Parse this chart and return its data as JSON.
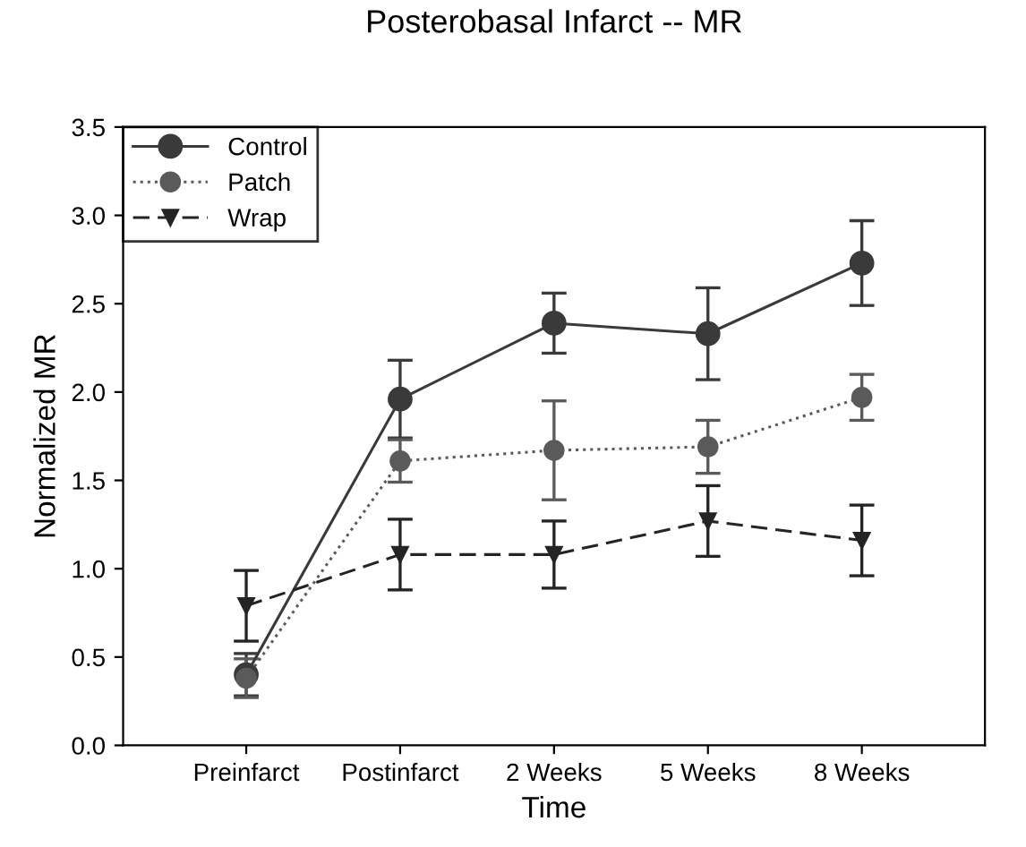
{
  "chart_data": {
    "type": "line",
    "title": "Posterobasal Infarct -- MR",
    "xlabel": "Time",
    "ylabel": "Normalized MR",
    "categories": [
      "Preinfarct",
      "Postinfarct",
      "2 Weeks",
      "5 Weeks",
      "8 Weeks"
    ],
    "ylim": [
      0,
      3.5
    ],
    "yticks": [
      {
        "value": 0,
        "label": "0.0"
      },
      0.5,
      {
        "value": 1,
        "label": "1.0"
      },
      1.5,
      {
        "value": 2,
        "label": "2.0"
      },
      2.5,
      {
        "value": 3,
        "label": "3.0"
      },
      3.5
    ],
    "grid": false,
    "legend": "top left",
    "series": [
      {
        "name": "Control",
        "color": "#3a3a3a",
        "marker": "circle",
        "line_style": "solid",
        "values": [
          0.4,
          1.96,
          2.39,
          2.33,
          2.73
        ],
        "errors": [
          0.12,
          0.22,
          0.17,
          0.26,
          0.24
        ]
      },
      {
        "name": "Patch",
        "color": "#5a5a5a",
        "marker": "circle",
        "line_style": "dotted",
        "values": [
          0.38,
          1.61,
          1.67,
          1.69,
          1.97
        ],
        "errors": [
          0.11,
          0.12,
          0.28,
          0.15,
          0.13
        ]
      },
      {
        "name": "Wrap",
        "color": "#242424",
        "marker": "triangle",
        "line_style": "dashed",
        "values": [
          0.79,
          1.08,
          1.08,
          1.27,
          1.16
        ],
        "errors": [
          0.2,
          0.2,
          0.19,
          0.2,
          0.2
        ]
      }
    ]
  }
}
